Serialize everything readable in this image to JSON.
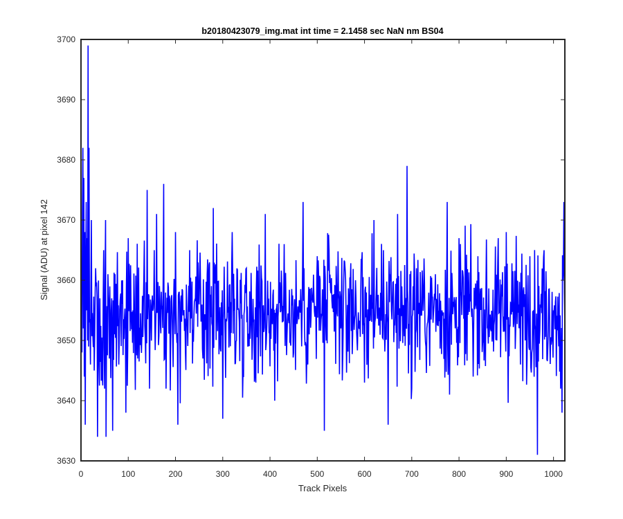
{
  "chart_data": {
    "type": "line",
    "title": "b20180423079_img.mat int time = 2.1458 sec  NaN nm BS04",
    "xlabel": "Track Pixels",
    "ylabel": "Signal (ADU) at pixel 142",
    "xlim": [
      0,
      1024
    ],
    "ylim": [
      3630,
      3700
    ],
    "xticks": [
      0,
      100,
      200,
      300,
      400,
      500,
      600,
      700,
      800,
      900,
      1000
    ],
    "yticks": [
      3630,
      3640,
      3650,
      3660,
      3670,
      3680,
      3690,
      3700
    ],
    "grid": false,
    "box": true,
    "series": [
      {
        "color": "#0000ff",
        "description": "noisy signal around 3655 ADU (~1024 samples); notable extremes listed as points",
        "mean": 3655,
        "points": [
          [
            1,
            3662
          ],
          [
            2,
            3648
          ],
          [
            3,
            3671
          ],
          [
            4,
            3682
          ],
          [
            5,
            3652
          ],
          [
            6,
            3677
          ],
          [
            7,
            3644
          ],
          [
            8,
            3668
          ],
          [
            9,
            3636
          ],
          [
            10,
            3660
          ],
          [
            11,
            3673
          ],
          [
            12,
            3655
          ],
          [
            13,
            3667
          ],
          [
            14,
            3650
          ],
          [
            15,
            3699
          ],
          [
            16,
            3649
          ],
          [
            17,
            3682
          ],
          [
            18,
            3653
          ],
          [
            20,
            3646
          ],
          [
            22,
            3670
          ],
          [
            25,
            3651
          ],
          [
            28,
            3645
          ],
          [
            31,
            3662
          ],
          [
            35,
            3634
          ],
          [
            40,
            3657
          ],
          [
            45,
            3644
          ],
          [
            48,
            3665
          ],
          [
            50,
            3642
          ],
          [
            52,
            3670
          ],
          [
            53,
            3634
          ],
          [
            57,
            3661
          ],
          [
            60,
            3647
          ],
          [
            65,
            3657
          ],
          [
            67,
            3635
          ],
          [
            72,
            3661
          ],
          [
            80,
            3646
          ],
          [
            88,
            3660
          ],
          [
            95,
            3638
          ],
          [
            100,
            3667
          ],
          [
            110,
            3655
          ],
          [
            120,
            3647
          ],
          [
            140,
            3675
          ],
          [
            145,
            3642
          ],
          [
            160,
            3671
          ],
          [
            175,
            3676
          ],
          [
            180,
            3642
          ],
          [
            200,
            3668
          ],
          [
            205,
            3636
          ],
          [
            230,
            3665
          ],
          [
            250,
            3656
          ],
          [
            280,
            3672
          ],
          [
            300,
            3637
          ],
          [
            320,
            3668
          ],
          [
            350,
            3662
          ],
          [
            370,
            3643
          ],
          [
            390,
            3671
          ],
          [
            410,
            3640
          ],
          [
            430,
            3666
          ],
          [
            450,
            3648
          ],
          [
            470,
            3673
          ],
          [
            480,
            3646
          ],
          [
            500,
            3664
          ],
          [
            515,
            3635
          ],
          [
            525,
            3665
          ],
          [
            550,
            3652
          ],
          [
            570,
            3660
          ],
          [
            600,
            3643
          ],
          [
            620,
            3670
          ],
          [
            640,
            3665
          ],
          [
            650,
            3636
          ],
          [
            670,
            3671
          ],
          [
            690,
            3679
          ],
          [
            700,
            3642
          ],
          [
            710,
            3662
          ],
          [
            730,
            3649
          ],
          [
            750,
            3661
          ],
          [
            775,
            3673
          ],
          [
            780,
            3641
          ],
          [
            800,
            3667
          ],
          [
            830,
            3644
          ],
          [
            840,
            3664
          ],
          [
            860,
            3652
          ],
          [
            880,
            3650
          ],
          [
            900,
            3668
          ],
          [
            930,
            3646
          ],
          [
            950,
            3664
          ],
          [
            966,
            3631
          ],
          [
            980,
            3665
          ],
          [
            1000,
            3655
          ],
          [
            1010,
            3652
          ],
          [
            1015,
            3642
          ],
          [
            1018,
            3638
          ],
          [
            1020,
            3660
          ],
          [
            1022,
            3673
          ],
          [
            1024,
            3652
          ]
        ]
      }
    ]
  }
}
